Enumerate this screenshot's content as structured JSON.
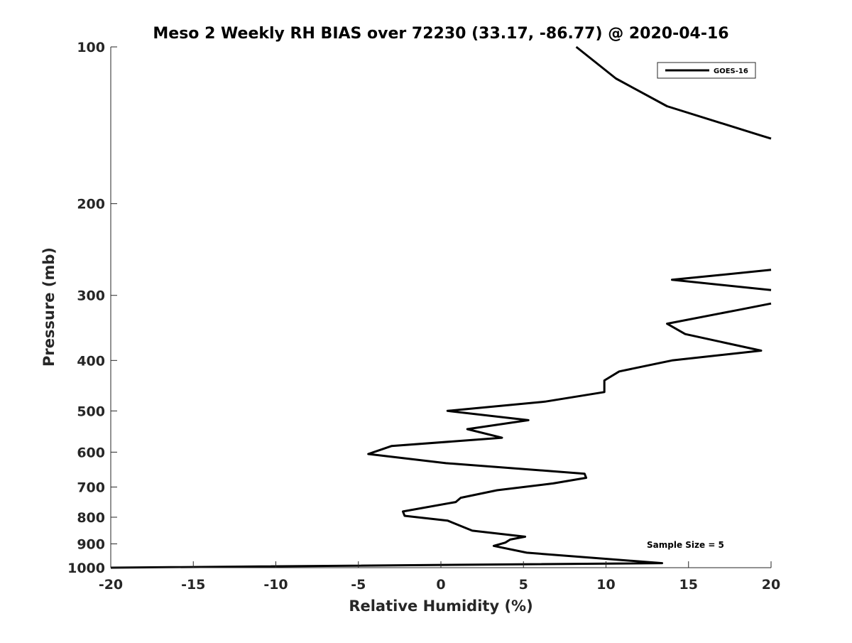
{
  "chart_data": {
    "type": "line",
    "title": "Meso 2 Weekly RH BIAS over 72230 (33.17, -86.77) @ 2020-04-16",
    "xlabel": "Relative Humidity (%)",
    "ylabel": "Pressure (mb)",
    "xlim": [
      -20,
      20
    ],
    "ylim": [
      100,
      1000
    ],
    "y_scale": "log",
    "y_reversed": true,
    "xticks": [
      -20,
      -15,
      -10,
      -5,
      0,
      5,
      10,
      15,
      20
    ],
    "yticks": [
      100,
      200,
      300,
      400,
      500,
      600,
      700,
      800,
      900,
      1000
    ],
    "grid": false,
    "legend_position": "top-right",
    "annotation": "Sample Size = 5",
    "line_color": "#000000",
    "series": [
      {
        "name": "GOES-16",
        "segments": [
          [
            {
              "x": 8.2,
              "y": 100
            },
            {
              "x": 10.6,
              "y": 115
            },
            {
              "x": 13.7,
              "y": 130
            },
            {
              "x": 19.4,
              "y": 148
            },
            {
              "x": 20.0,
              "y": 150
            }
          ],
          [
            {
              "x": 20.0,
              "y": 268
            },
            {
              "x": 14.0,
              "y": 280
            },
            {
              "x": 20.0,
              "y": 293
            }
          ],
          [
            {
              "x": 20.0,
              "y": 311
            },
            {
              "x": 18.0,
              "y": 320
            },
            {
              "x": 13.7,
              "y": 340
            },
            {
              "x": 14.8,
              "y": 356
            },
            {
              "x": 19.4,
              "y": 383
            },
            {
              "x": 14.0,
              "y": 400
            },
            {
              "x": 10.8,
              "y": 420
            },
            {
              "x": 9.9,
              "y": 437
            },
            {
              "x": 9.9,
              "y": 460
            },
            {
              "x": 6.3,
              "y": 480
            },
            {
              "x": 0.4,
              "y": 500
            },
            {
              "x": 5.3,
              "y": 521
            },
            {
              "x": 1.6,
              "y": 542
            },
            {
              "x": 3.7,
              "y": 563
            },
            {
              "x": -3.0,
              "y": 584
            },
            {
              "x": -4.4,
              "y": 605
            },
            {
              "x": 0.3,
              "y": 630
            },
            {
              "x": 8.7,
              "y": 660
            },
            {
              "x": 8.8,
              "y": 672
            },
            {
              "x": 6.8,
              "y": 689
            },
            {
              "x": 3.4,
              "y": 710
            },
            {
              "x": 1.2,
              "y": 734
            },
            {
              "x": 0.9,
              "y": 748
            },
            {
              "x": -2.3,
              "y": 780
            },
            {
              "x": -2.2,
              "y": 795
            },
            {
              "x": 0.4,
              "y": 812
            },
            {
              "x": 1.5,
              "y": 839
            },
            {
              "x": 1.9,
              "y": 849
            },
            {
              "x": 5.1,
              "y": 872
            },
            {
              "x": 4.2,
              "y": 883
            },
            {
              "x": 3.9,
              "y": 895
            },
            {
              "x": 3.2,
              "y": 908
            },
            {
              "x": 5.2,
              "y": 936
            },
            {
              "x": 13.4,
              "y": 980
            },
            {
              "x": -20.0,
              "y": 1000
            }
          ]
        ]
      }
    ]
  }
}
